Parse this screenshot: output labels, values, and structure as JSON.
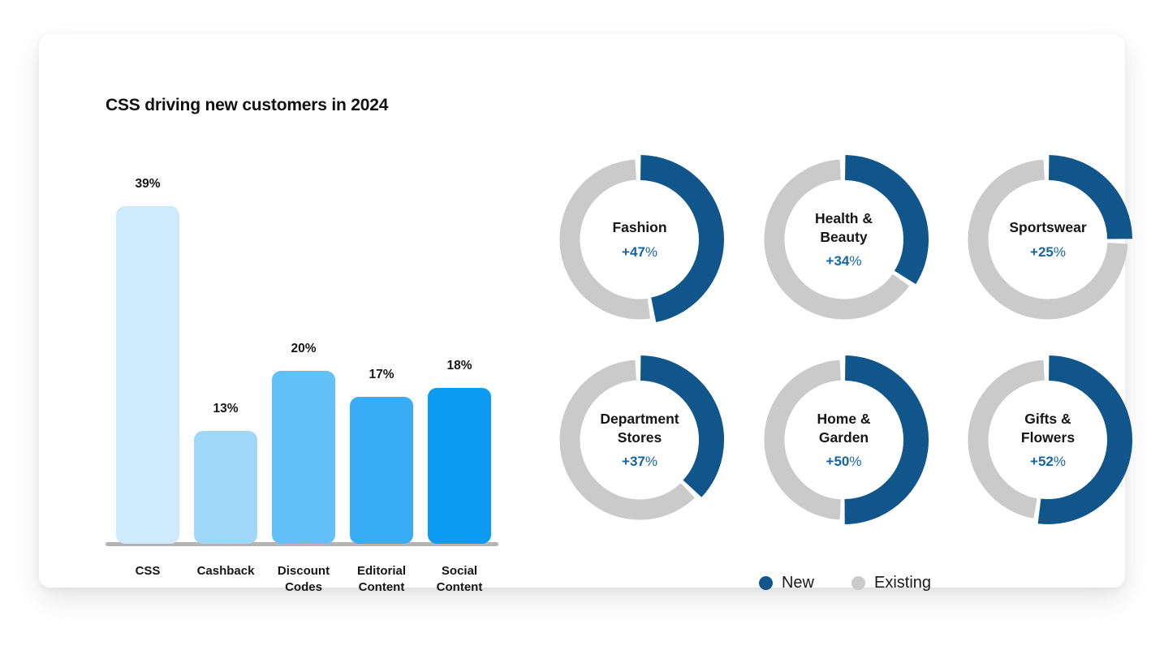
{
  "title": "CSS driving new customers in 2024",
  "colors": {
    "card_bg": "#ffffff",
    "axis": "#b4b4b4",
    "text": "#161616",
    "donut_new": "#10568a",
    "donut_existing": "#cacaca",
    "pct_text": "#1565a0"
  },
  "chart_data": [
    {
      "type": "bar",
      "title": "CSS driving new customers in 2024",
      "categories": [
        "CSS",
        "Cashback",
        "Discount Codes",
        "Editorial Content",
        "Social Content"
      ],
      "values": [
        39,
        13,
        20,
        17,
        18
      ],
      "value_labels": [
        "39%",
        "13%",
        "20%",
        "17%",
        "18%"
      ],
      "unit": "%",
      "bar_colors": [
        "#cfe9fd",
        "#9ed7fa",
        "#61c1f8",
        "#38adf6",
        "#0c9bf3"
      ],
      "ylim": [
        0,
        39
      ],
      "grid": false,
      "xlabel": "",
      "ylabel": ""
    },
    {
      "type": "donut-grid",
      "layout": "2 rows x 3 cols",
      "legend": [
        {
          "label": "New",
          "color": "#10568a"
        },
        {
          "label": "Existing",
          "color": "#cacaca"
        }
      ],
      "donuts": [
        {
          "label": "Fashion",
          "label_lines": [
            "Fashion"
          ],
          "new_pct": 47,
          "existing_pct": 53,
          "display": "+47%"
        },
        {
          "label": "Health & Beauty",
          "label_lines": [
            "Health &",
            "Beauty"
          ],
          "new_pct": 34,
          "existing_pct": 66,
          "display": "+34%"
        },
        {
          "label": "Sportswear",
          "label_lines": [
            "Sportswear"
          ],
          "new_pct": 25,
          "existing_pct": 75,
          "display": "+25%"
        },
        {
          "label": "Department Stores",
          "label_lines": [
            "Department",
            "Stores"
          ],
          "new_pct": 37,
          "existing_pct": 63,
          "display": "+37%"
        },
        {
          "label": "Home & Garden",
          "label_lines": [
            "Home &",
            "Garden"
          ],
          "new_pct": 50,
          "existing_pct": 50,
          "display": "+50%"
        },
        {
          "label": "Gifts & Flowers",
          "label_lines": [
            "Gifts &",
            "Flowers"
          ],
          "new_pct": 52,
          "existing_pct": 48,
          "display": "+52%"
        }
      ]
    }
  ]
}
